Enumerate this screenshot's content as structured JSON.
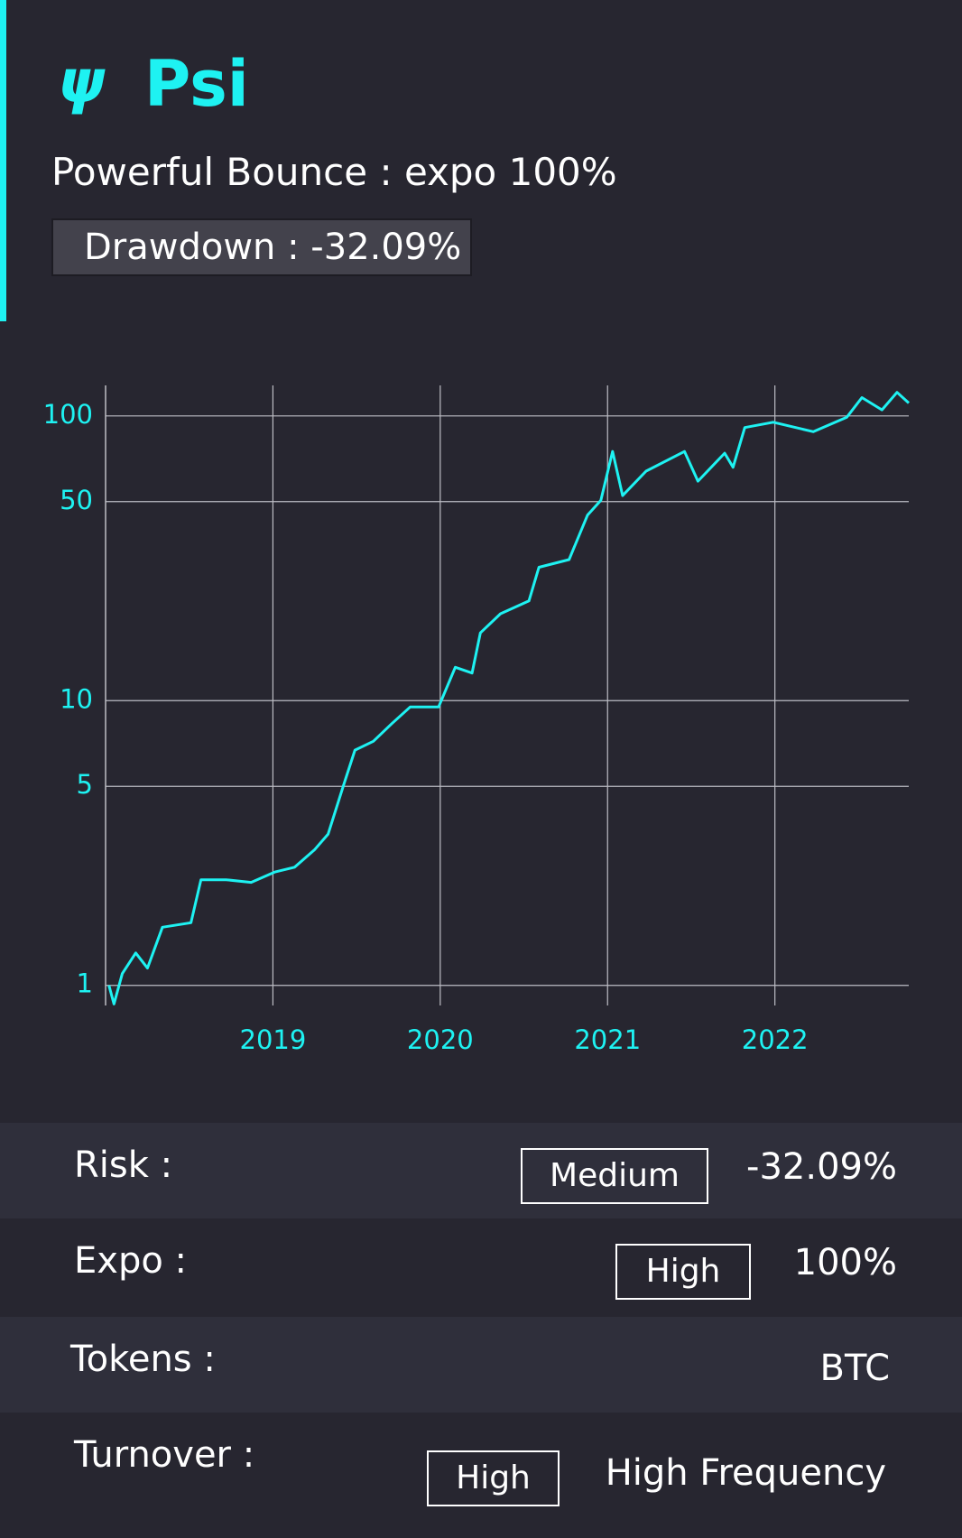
{
  "header": {
    "icon": "ψ",
    "title": "Psi",
    "subtitle": "Powerful Bounce : expo 100%",
    "badge": "Drawdown : -32.09%"
  },
  "chart_data": {
    "type": "line",
    "log_y": true,
    "grid": true,
    "color": "#1ef2f2",
    "x": [
      2018.02,
      2018.05,
      2018.1,
      2018.18,
      2018.25,
      2018.34,
      2018.51,
      2018.57,
      2018.72,
      2018.87,
      2019.01,
      2019.13,
      2019.25,
      2019.33,
      2019.42,
      2019.49,
      2019.6,
      2019.71,
      2019.82,
      2019.99,
      2020.09,
      2020.19,
      2020.24,
      2020.36,
      2020.53,
      2020.59,
      2020.77,
      2020.88,
      2020.96,
      2021.03,
      2021.09,
      2021.23,
      2021.46,
      2021.54,
      2021.7,
      2021.75,
      2021.82,
      2021.99,
      2022.23,
      2022.43,
      2022.52,
      2022.64,
      2022.73,
      2022.8
    ],
    "series": [
      {
        "values": [
          1.0,
          0.86,
          1.1,
          1.3,
          1.15,
          1.6,
          1.66,
          2.35,
          2.35,
          2.3,
          2.5,
          2.6,
          3.0,
          3.4,
          5.0,
          6.7,
          7.2,
          8.3,
          9.5,
          9.5,
          13.1,
          12.5,
          17.3,
          20.2,
          22.4,
          29.4,
          31.3,
          44.8,
          50.5,
          75,
          52.5,
          64,
          75,
          59,
          74,
          66,
          91,
          95,
          88,
          99,
          116,
          105,
          121,
          111
        ]
      }
    ],
    "xlim": [
      2018.0,
      2022.8
    ],
    "xticks": [
      2019,
      2020,
      2021,
      2022
    ],
    "ylim": [
      0.85,
      128
    ],
    "yticks": [
      1,
      5,
      10,
      50,
      100
    ]
  },
  "rows": [
    {
      "label": "Risk :",
      "badge": "Medium",
      "value": "-32.09%"
    },
    {
      "label": "Expo :",
      "badge": "High",
      "value": "100%"
    },
    {
      "label": "Tokens :",
      "value": "BTC"
    },
    {
      "label": "Turnover :",
      "badge": "High",
      "value": "High Frequency"
    }
  ]
}
